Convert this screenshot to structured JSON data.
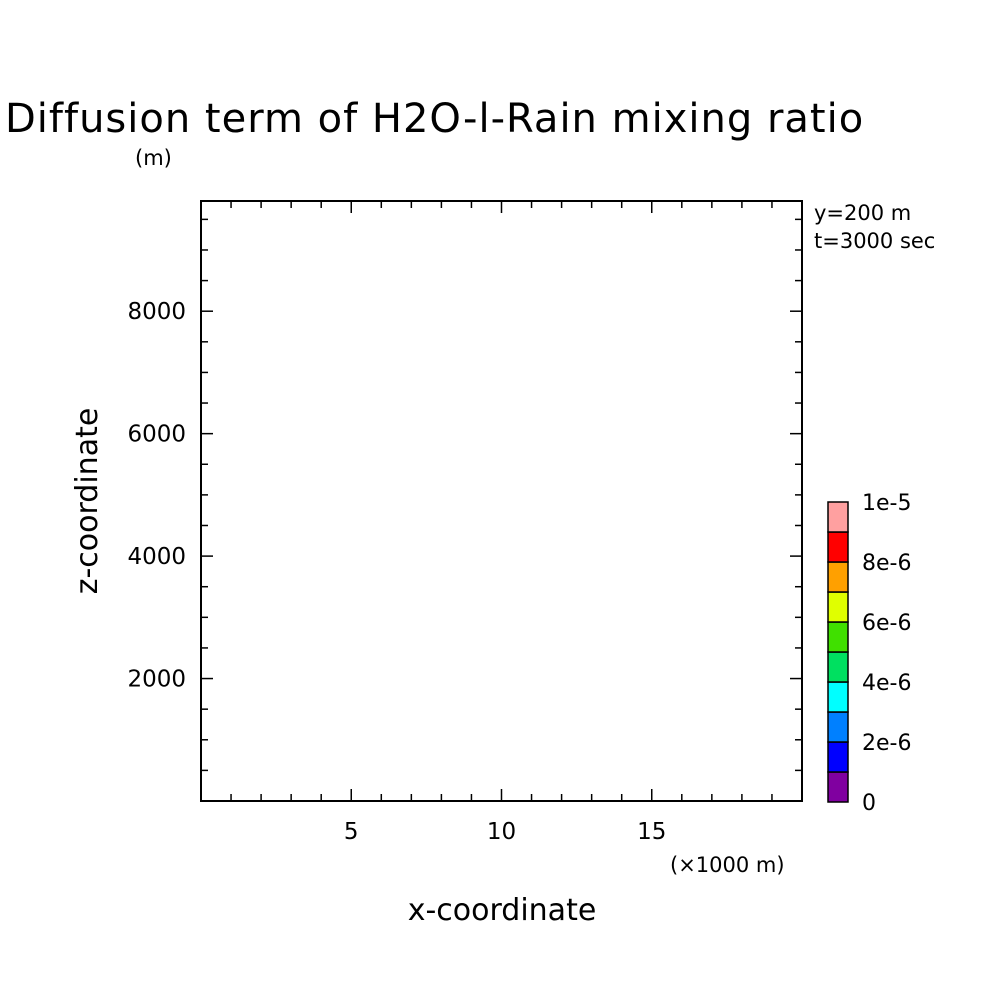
{
  "chart_data": {
    "type": "heatmap",
    "title": "Diffusion term of H2O-l-Rain mixing ratio",
    "y_unit_note": "(m)",
    "x_unit_note": "(×1000 m)",
    "xlabel": "x-coordinate",
    "ylabel": "z-coordinate",
    "xlim": [
      0,
      20
    ],
    "ylim": [
      0,
      9800
    ],
    "x_ticks": [
      5,
      10,
      15
    ],
    "y_ticks": [
      2000,
      4000,
      6000,
      8000
    ],
    "x_minor_step": 1,
    "y_minor_step": 500,
    "info_lines": [
      "y=200 m",
      "t=3000 sec"
    ],
    "field_values": [],
    "grid": false,
    "colorbar": {
      "min": 0,
      "max": 1e-05,
      "levels": [
        {
          "from": 0,
          "to": 1e-06,
          "color": "#8000a0"
        },
        {
          "from": 1e-06,
          "to": 2e-06,
          "color": "#0000ff"
        },
        {
          "from": 2e-06,
          "to": 3e-06,
          "color": "#0080ff"
        },
        {
          "from": 3e-06,
          "to": 4e-06,
          "color": "#00ffff"
        },
        {
          "from": 4e-06,
          "to": 5e-06,
          "color": "#00e060"
        },
        {
          "from": 5e-06,
          "to": 6e-06,
          "color": "#40e000"
        },
        {
          "from": 6e-06,
          "to": 7e-06,
          "color": "#e0ff00"
        },
        {
          "from": 7e-06,
          "to": 8e-06,
          "color": "#ffa000"
        },
        {
          "from": 8e-06,
          "to": 9e-06,
          "color": "#ff0000"
        },
        {
          "from": 9e-06,
          "to": 1e-05,
          "color": "#ffa0a0"
        }
      ],
      "tick_labels": [
        {
          "value": 0,
          "label": "0"
        },
        {
          "value": 2e-06,
          "label": "2e-6"
        },
        {
          "value": 4e-06,
          "label": "4e-6"
        },
        {
          "value": 6e-06,
          "label": "6e-6"
        },
        {
          "value": 8e-06,
          "label": "8e-6"
        },
        {
          "value": 1e-05,
          "label": "1e-5"
        }
      ]
    }
  }
}
